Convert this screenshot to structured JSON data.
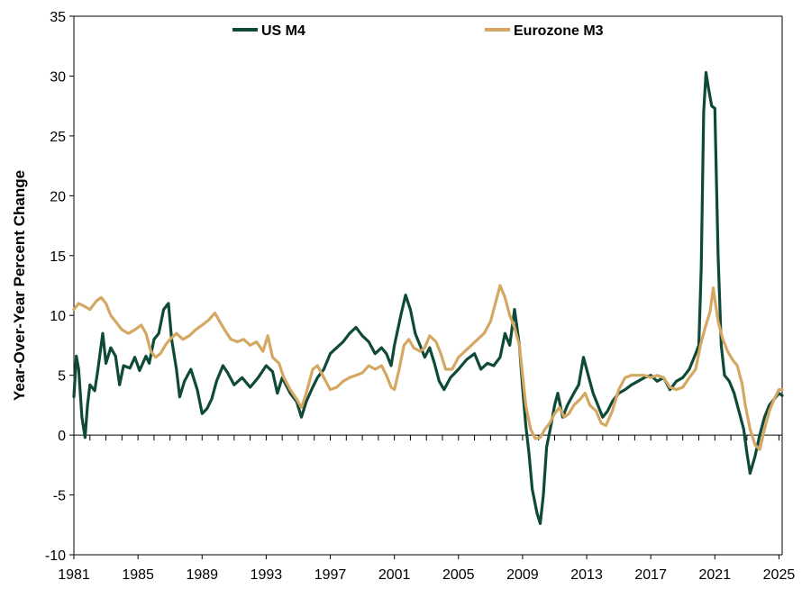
{
  "chart_data": {
    "type": "line",
    "title": "",
    "xlabel": "",
    "ylabel": "Year-Over-Year Percent Change",
    "xlim": [
      1981,
      2025.2
    ],
    "ylim": [
      -10,
      35
    ],
    "x_ticks": [
      "1981",
      "1985",
      "1989",
      "1993",
      "1997",
      "2001",
      "2005",
      "2009",
      "2013",
      "2017",
      "2021",
      "2025"
    ],
    "y_ticks": [
      "-10",
      "-5",
      "0",
      "5",
      "10",
      "15",
      "20",
      "25",
      "30",
      "35"
    ],
    "grid": false,
    "legend_position": "top",
    "series": [
      {
        "name": "US M4",
        "color": "#0f4a38",
        "points": [
          [
            1981.0,
            3.2
          ],
          [
            1981.15,
            6.6
          ],
          [
            1981.3,
            5.5
          ],
          [
            1981.5,
            1.5
          ],
          [
            1981.7,
            -0.2
          ],
          [
            1981.85,
            2.5
          ],
          [
            1982.0,
            4.2
          ],
          [
            1982.3,
            3.7
          ],
          [
            1982.5,
            5.5
          ],
          [
            1982.8,
            8.5
          ],
          [
            1983.0,
            6.0
          ],
          [
            1983.3,
            7.3
          ],
          [
            1983.6,
            6.6
          ],
          [
            1983.85,
            4.2
          ],
          [
            1984.1,
            5.8
          ],
          [
            1984.5,
            5.6
          ],
          [
            1984.8,
            6.5
          ],
          [
            1985.1,
            5.4
          ],
          [
            1985.5,
            6.6
          ],
          [
            1985.7,
            6.0
          ],
          [
            1986.0,
            8.0
          ],
          [
            1986.3,
            8.5
          ],
          [
            1986.6,
            10.5
          ],
          [
            1986.9,
            11.0
          ],
          [
            1987.1,
            8.0
          ],
          [
            1987.4,
            5.5
          ],
          [
            1987.6,
            3.2
          ],
          [
            1987.9,
            4.5
          ],
          [
            1988.3,
            5.5
          ],
          [
            1988.7,
            3.8
          ],
          [
            1989.0,
            1.8
          ],
          [
            1989.3,
            2.2
          ],
          [
            1989.6,
            3.0
          ],
          [
            1989.9,
            4.5
          ],
          [
            1990.3,
            5.8
          ],
          [
            1990.6,
            5.2
          ],
          [
            1991.0,
            4.2
          ],
          [
            1991.5,
            4.8
          ],
          [
            1992.0,
            4.0
          ],
          [
            1992.5,
            4.8
          ],
          [
            1993.0,
            5.8
          ],
          [
            1993.4,
            5.3
          ],
          [
            1993.7,
            3.5
          ],
          [
            1994.0,
            4.8
          ],
          [
            1994.5,
            3.5
          ],
          [
            1994.9,
            2.8
          ],
          [
            1995.2,
            1.5
          ],
          [
            1995.5,
            2.8
          ],
          [
            1995.9,
            4.0
          ],
          [
            1996.2,
            4.8
          ],
          [
            1996.6,
            5.5
          ],
          [
            1997.0,
            6.8
          ],
          [
            1997.4,
            7.3
          ],
          [
            1997.8,
            7.8
          ],
          [
            1998.2,
            8.5
          ],
          [
            1998.6,
            9.0
          ],
          [
            1999.0,
            8.3
          ],
          [
            1999.4,
            7.8
          ],
          [
            1999.8,
            6.8
          ],
          [
            2000.2,
            7.3
          ],
          [
            2000.5,
            6.8
          ],
          [
            2000.8,
            5.8
          ],
          [
            2001.0,
            7.5
          ],
          [
            2001.4,
            10.0
          ],
          [
            2001.7,
            11.7
          ],
          [
            2002.0,
            10.5
          ],
          [
            2002.3,
            8.5
          ],
          [
            2002.6,
            7.5
          ],
          [
            2002.9,
            6.5
          ],
          [
            2003.2,
            7.3
          ],
          [
            2003.5,
            6.0
          ],
          [
            2003.8,
            4.5
          ],
          [
            2004.1,
            3.8
          ],
          [
            2004.5,
            4.8
          ],
          [
            2005.0,
            5.5
          ],
          [
            2005.5,
            6.3
          ],
          [
            2006.0,
            6.8
          ],
          [
            2006.4,
            5.5
          ],
          [
            2006.8,
            6.0
          ],
          [
            2007.2,
            5.8
          ],
          [
            2007.6,
            6.5
          ],
          [
            2007.9,
            8.5
          ],
          [
            2008.2,
            7.5
          ],
          [
            2008.5,
            10.5
          ],
          [
            2008.8,
            7.5
          ],
          [
            2009.0,
            4.0
          ],
          [
            2009.2,
            0.8
          ],
          [
            2009.4,
            -1.5
          ],
          [
            2009.6,
            -4.5
          ],
          [
            2009.9,
            -6.5
          ],
          [
            2010.1,
            -7.4
          ],
          [
            2010.3,
            -5.0
          ],
          [
            2010.5,
            -1.0
          ],
          [
            2010.8,
            1.0
          ],
          [
            2011.0,
            2.5
          ],
          [
            2011.2,
            3.5
          ],
          [
            2011.5,
            1.5
          ],
          [
            2011.8,
            2.5
          ],
          [
            2012.2,
            3.5
          ],
          [
            2012.5,
            4.2
          ],
          [
            2012.8,
            6.5
          ],
          [
            2013.1,
            5.0
          ],
          [
            2013.4,
            3.5
          ],
          [
            2013.7,
            2.5
          ],
          [
            2014.0,
            1.5
          ],
          [
            2014.3,
            2.0
          ],
          [
            2014.6,
            2.8
          ],
          [
            2015.0,
            3.5
          ],
          [
            2015.4,
            3.8
          ],
          [
            2015.8,
            4.2
          ],
          [
            2016.2,
            4.5
          ],
          [
            2016.6,
            4.8
          ],
          [
            2017.0,
            5.0
          ],
          [
            2017.4,
            4.5
          ],
          [
            2017.8,
            4.8
          ],
          [
            2018.2,
            3.8
          ],
          [
            2018.6,
            4.5
          ],
          [
            2019.0,
            4.8
          ],
          [
            2019.4,
            5.5
          ],
          [
            2019.8,
            6.8
          ],
          [
            2020.0,
            7.5
          ],
          [
            2020.15,
            14.0
          ],
          [
            2020.3,
            27.0
          ],
          [
            2020.45,
            30.3
          ],
          [
            2020.6,
            29.0
          ],
          [
            2020.8,
            27.5
          ],
          [
            2021.0,
            27.3
          ],
          [
            2021.2,
            15.0
          ],
          [
            2021.4,
            7.5
          ],
          [
            2021.6,
            5.0
          ],
          [
            2021.9,
            4.5
          ],
          [
            2022.2,
            3.5
          ],
          [
            2022.5,
            2.0
          ],
          [
            2022.8,
            0.5
          ],
          [
            2023.0,
            -1.5
          ],
          [
            2023.2,
            -3.2
          ],
          [
            2023.5,
            -1.8
          ],
          [
            2023.8,
            0.0
          ],
          [
            2024.1,
            1.5
          ],
          [
            2024.4,
            2.5
          ],
          [
            2024.7,
            3.0
          ],
          [
            2025.0,
            3.5
          ],
          [
            2025.2,
            3.3
          ]
        ]
      },
      {
        "name": "Eurozone M3",
        "color": "#d4a863",
        "points": [
          [
            1981.0,
            10.5
          ],
          [
            1981.3,
            11.0
          ],
          [
            1981.6,
            10.8
          ],
          [
            1982.0,
            10.5
          ],
          [
            1982.4,
            11.2
          ],
          [
            1982.7,
            11.5
          ],
          [
            1983.0,
            11.0
          ],
          [
            1983.3,
            10.0
          ],
          [
            1983.6,
            9.5
          ],
          [
            1984.0,
            8.8
          ],
          [
            1984.4,
            8.5
          ],
          [
            1984.8,
            8.8
          ],
          [
            1985.2,
            9.2
          ],
          [
            1985.5,
            8.5
          ],
          [
            1985.8,
            7.0
          ],
          [
            1986.1,
            6.5
          ],
          [
            1986.4,
            6.8
          ],
          [
            1986.7,
            7.5
          ],
          [
            1987.0,
            8.0
          ],
          [
            1987.4,
            8.5
          ],
          [
            1987.8,
            8.0
          ],
          [
            1988.2,
            8.3
          ],
          [
            1988.6,
            8.8
          ],
          [
            1989.0,
            9.2
          ],
          [
            1989.4,
            9.6
          ],
          [
            1989.8,
            10.2
          ],
          [
            1990.1,
            9.5
          ],
          [
            1990.4,
            8.8
          ],
          [
            1990.8,
            8.0
          ],
          [
            1991.2,
            7.8
          ],
          [
            1991.6,
            8.0
          ],
          [
            1992.0,
            7.5
          ],
          [
            1992.4,
            7.8
          ],
          [
            1992.8,
            7.0
          ],
          [
            1993.1,
            8.3
          ],
          [
            1993.4,
            6.5
          ],
          [
            1993.8,
            6.0
          ],
          [
            1994.1,
            4.8
          ],
          [
            1994.5,
            3.8
          ],
          [
            1994.9,
            3.0
          ],
          [
            1995.2,
            2.3
          ],
          [
            1995.5,
            3.5
          ],
          [
            1995.9,
            5.5
          ],
          [
            1996.2,
            5.8
          ],
          [
            1996.6,
            4.8
          ],
          [
            1997.0,
            3.8
          ],
          [
            1997.4,
            4.0
          ],
          [
            1997.8,
            4.5
          ],
          [
            1998.2,
            4.8
          ],
          [
            1998.6,
            5.0
          ],
          [
            1999.0,
            5.2
          ],
          [
            1999.4,
            5.8
          ],
          [
            1999.8,
            5.5
          ],
          [
            2000.2,
            5.8
          ],
          [
            2000.5,
            5.0
          ],
          [
            2000.8,
            4.0
          ],
          [
            2001.0,
            3.8
          ],
          [
            2001.3,
            5.5
          ],
          [
            2001.6,
            7.5
          ],
          [
            2001.9,
            8.0
          ],
          [
            2002.2,
            7.3
          ],
          [
            2002.6,
            7.0
          ],
          [
            2002.9,
            7.3
          ],
          [
            2003.2,
            8.3
          ],
          [
            2003.6,
            7.8
          ],
          [
            2003.9,
            6.8
          ],
          [
            2004.2,
            5.5
          ],
          [
            2004.6,
            5.5
          ],
          [
            2005.0,
            6.5
          ],
          [
            2005.4,
            7.0
          ],
          [
            2005.8,
            7.5
          ],
          [
            2006.2,
            8.0
          ],
          [
            2006.6,
            8.5
          ],
          [
            2007.0,
            9.5
          ],
          [
            2007.3,
            11.0
          ],
          [
            2007.6,
            12.5
          ],
          [
            2007.9,
            11.5
          ],
          [
            2008.2,
            10.0
          ],
          [
            2008.5,
            9.0
          ],
          [
            2008.8,
            7.5
          ],
          [
            2009.0,
            5.0
          ],
          [
            2009.2,
            2.5
          ],
          [
            2009.5,
            0.5
          ],
          [
            2009.8,
            -0.3
          ],
          [
            2010.1,
            -0.2
          ],
          [
            2010.4,
            0.5
          ],
          [
            2010.7,
            1.0
          ],
          [
            2011.0,
            1.8
          ],
          [
            2011.3,
            2.3
          ],
          [
            2011.6,
            1.5
          ],
          [
            2011.9,
            1.8
          ],
          [
            2012.2,
            2.5
          ],
          [
            2012.6,
            3.0
          ],
          [
            2012.9,
            3.5
          ],
          [
            2013.2,
            2.5
          ],
          [
            2013.6,
            2.0
          ],
          [
            2013.9,
            1.0
          ],
          [
            2014.2,
            0.8
          ],
          [
            2014.6,
            2.0
          ],
          [
            2015.0,
            3.8
          ],
          [
            2015.4,
            4.8
          ],
          [
            2015.8,
            5.0
          ],
          [
            2016.2,
            5.0
          ],
          [
            2016.6,
            5.0
          ],
          [
            2017.0,
            4.8
          ],
          [
            2017.4,
            5.0
          ],
          [
            2017.8,
            4.8
          ],
          [
            2018.2,
            4.0
          ],
          [
            2018.6,
            3.8
          ],
          [
            2019.0,
            4.0
          ],
          [
            2019.4,
            4.8
          ],
          [
            2019.8,
            5.5
          ],
          [
            2020.1,
            7.5
          ],
          [
            2020.4,
            9.0
          ],
          [
            2020.7,
            10.3
          ],
          [
            2020.9,
            12.3
          ],
          [
            2021.2,
            9.5
          ],
          [
            2021.5,
            8.0
          ],
          [
            2021.8,
            7.0
          ],
          [
            2022.1,
            6.3
          ],
          [
            2022.4,
            5.8
          ],
          [
            2022.7,
            4.3
          ],
          [
            2022.9,
            2.5
          ],
          [
            2023.2,
            0.5
          ],
          [
            2023.5,
            -0.8
          ],
          [
            2023.8,
            -1.2
          ],
          [
            2024.1,
            0.5
          ],
          [
            2024.4,
            2.0
          ],
          [
            2024.7,
            3.0
          ],
          [
            2025.0,
            3.8
          ],
          [
            2025.2,
            3.8
          ]
        ]
      }
    ]
  }
}
